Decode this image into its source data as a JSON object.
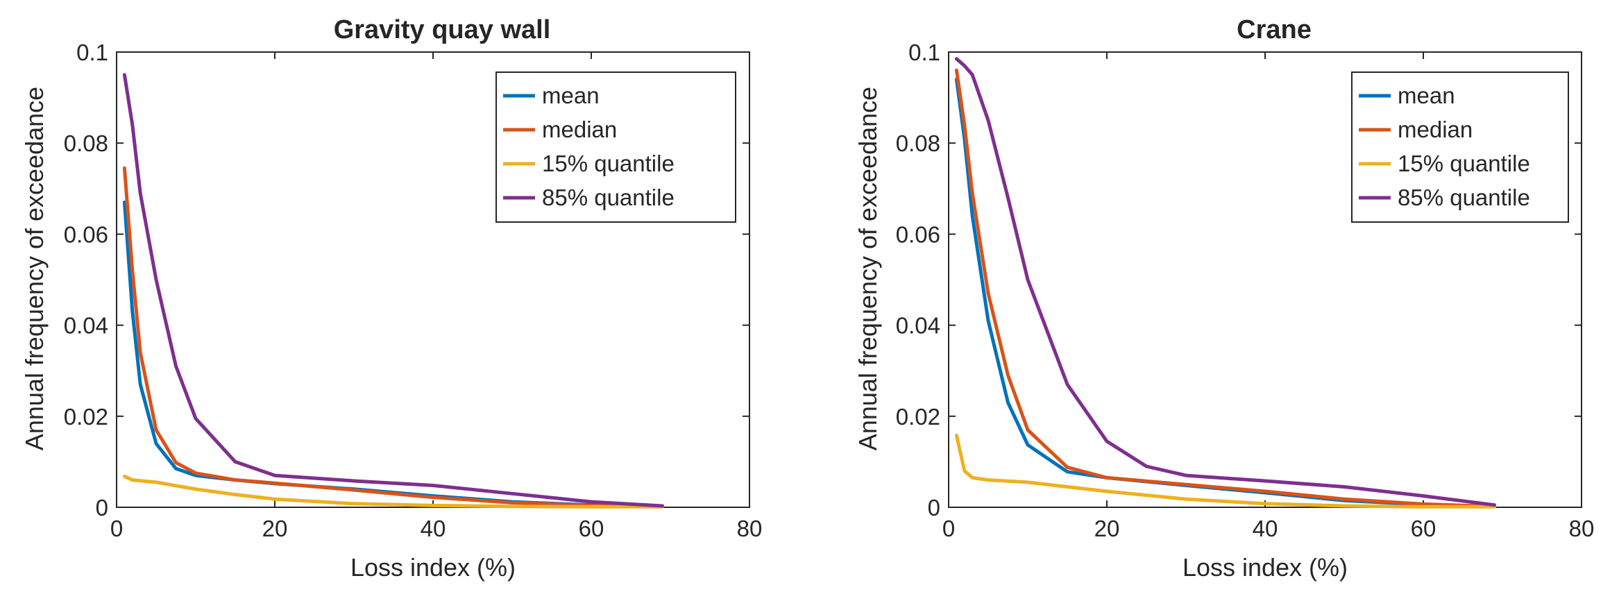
{
  "chart_data": [
    {
      "type": "line",
      "title": "Gravity quay wall",
      "xlabel": "Loss index (%)",
      "ylabel": "Annual frequency of exceedance",
      "xlim": [
        0,
        80
      ],
      "ylim": [
        0,
        0.1
      ],
      "xticks": [
        "0",
        "20",
        "40",
        "60",
        "80"
      ],
      "yticks": [
        "0",
        "0.02",
        "0.04",
        "0.06",
        "0.08",
        "0.1"
      ],
      "grid": false,
      "legend_position": "top-right",
      "series": [
        {
          "name": "mean",
          "color": "#0072BD",
          "x": [
            1,
            2,
            3,
            5,
            7.5,
            10,
            15,
            20,
            30,
            40,
            50,
            60,
            69
          ],
          "y": [
            0.067,
            0.043,
            0.027,
            0.014,
            0.0085,
            0.007,
            0.006,
            0.0052,
            0.004,
            0.0025,
            0.0012,
            0.0005,
            0.0002
          ]
        },
        {
          "name": "median",
          "color": "#D95319",
          "x": [
            1,
            2,
            3,
            5,
            7.5,
            10,
            15,
            20,
            30,
            40,
            50,
            60,
            69
          ],
          "y": [
            0.0745,
            0.052,
            0.034,
            0.017,
            0.0098,
            0.0075,
            0.006,
            0.0053,
            0.0038,
            0.0022,
            0.001,
            0.0004,
            0.0002
          ]
        },
        {
          "name": "15% quantile",
          "color": "#EDB120",
          "x": [
            1,
            2,
            5,
            10,
            15,
            20,
            30,
            40,
            50,
            60,
            69
          ],
          "y": [
            0.0068,
            0.006,
            0.0055,
            0.004,
            0.0028,
            0.0018,
            0.0008,
            0.0004,
            0.0002,
            0.0001,
            0.0001
          ]
        },
        {
          "name": "85% quantile",
          "color": "#7E2F8E",
          "x": [
            1,
            2,
            3,
            5,
            7.5,
            10,
            15,
            20,
            30,
            40,
            50,
            60,
            69
          ],
          "y": [
            0.095,
            0.084,
            0.069,
            0.05,
            0.031,
            0.0195,
            0.01,
            0.007,
            0.0058,
            0.0048,
            0.003,
            0.0012,
            0.0003
          ]
        }
      ]
    },
    {
      "type": "line",
      "title": "Crane",
      "xlabel": "Loss index (%)",
      "ylabel": "Annual frequency of exceedance",
      "xlim": [
        0,
        80
      ],
      "ylim": [
        0,
        0.1
      ],
      "xticks": [
        "0",
        "20",
        "40",
        "60",
        "80"
      ],
      "yticks": [
        "0",
        "0.02",
        "0.04",
        "0.06",
        "0.08",
        "0.1"
      ],
      "grid": false,
      "legend_position": "top-right",
      "series": [
        {
          "name": "mean",
          "color": "#0072BD",
          "x": [
            1,
            2,
            3,
            5,
            7.5,
            10,
            15,
            20,
            30,
            40,
            50,
            60,
            69
          ],
          "y": [
            0.094,
            0.081,
            0.064,
            0.041,
            0.023,
            0.0137,
            0.0078,
            0.0065,
            0.0048,
            0.0032,
            0.0015,
            0.0006,
            0.0002
          ]
        },
        {
          "name": "median",
          "color": "#D95319",
          "x": [
            1,
            2,
            3,
            5,
            7.5,
            10,
            15,
            20,
            30,
            40,
            50,
            60,
            69
          ],
          "y": [
            0.096,
            0.084,
            0.069,
            0.047,
            0.029,
            0.017,
            0.0088,
            0.0065,
            0.005,
            0.0035,
            0.0018,
            0.0007,
            0.0002
          ]
        },
        {
          "name": "15% quantile",
          "color": "#EDB120",
          "x": [
            1,
            2,
            3,
            5,
            10,
            15,
            20,
            30,
            40,
            50,
            60,
            69
          ],
          "y": [
            0.0158,
            0.008,
            0.0065,
            0.006,
            0.0055,
            0.0045,
            0.0035,
            0.0018,
            0.0008,
            0.0003,
            0.0001,
            0.0001
          ]
        },
        {
          "name": "85% quantile",
          "color": "#7E2F8E",
          "x": [
            1,
            2,
            3,
            5,
            7.5,
            10,
            15,
            20,
            25,
            30,
            40,
            50,
            60,
            69
          ],
          "y": [
            0.0985,
            0.097,
            0.095,
            0.085,
            0.068,
            0.05,
            0.027,
            0.0145,
            0.009,
            0.007,
            0.0058,
            0.0045,
            0.0025,
            0.0005
          ]
        }
      ]
    }
  ]
}
